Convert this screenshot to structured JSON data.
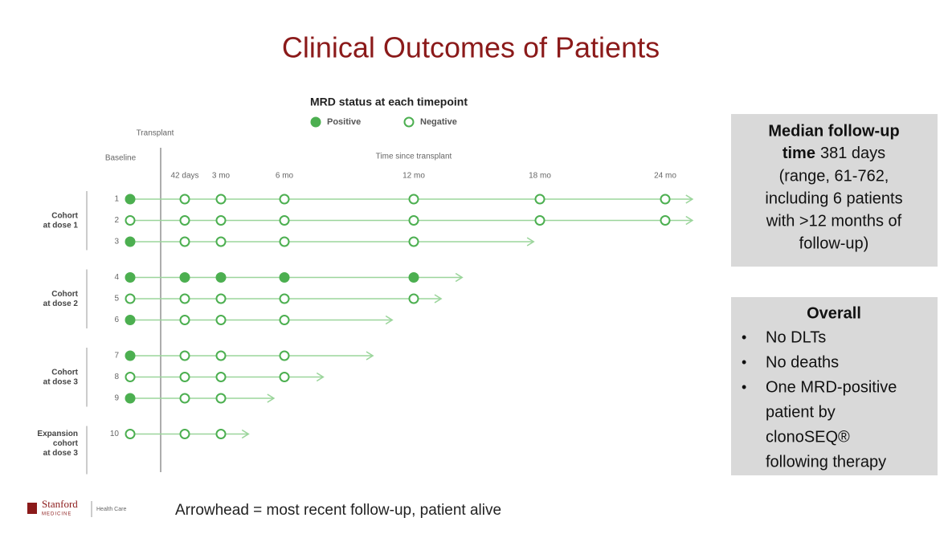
{
  "slide": {
    "title": "Clinical Outcomes of Patients",
    "box1": {
      "heading": [
        "Median follow-up",
        "time"
      ],
      "body": [
        "381 days",
        "(range, 61-762,",
        "including 6 patients",
        "with >12 months of",
        "follow-up)"
      ]
    },
    "box2": {
      "title": "Overall",
      "bullets": [
        {
          "lines": [
            "No DLTs"
          ]
        },
        {
          "lines": [
            "No deaths"
          ]
        },
        {
          "lines": [
            "One MRD-positive",
            "patient by",
            "clonoSEQ®",
            "following therapy"
          ]
        }
      ]
    },
    "logo": [
      "Stanford",
      "MEDICINE",
      "Health Care"
    ],
    "footnote": "Arrowhead = most recent follow-up, patient alive"
  },
  "chart_data": {
    "type": "swimmer",
    "title": "MRD status at each timepoint",
    "legend": [
      {
        "name": "Positive",
        "status": "positive"
      },
      {
        "name": "Negative",
        "status": "negative"
      }
    ],
    "color": "#4caf50",
    "line_color": "#9bd59b",
    "reference_label": "Transplant",
    "xlabel": "Time since transplant",
    "xticks": [
      {
        "value": 0,
        "label": "Baseline"
      },
      {
        "value": 1.4,
        "label": "42 days"
      },
      {
        "value": 3,
        "label": "3 mo"
      },
      {
        "value": 6,
        "label": "6 mo"
      },
      {
        "value": 12,
        "label": "12 mo"
      },
      {
        "value": 18,
        "label": "18 mo"
      },
      {
        "value": 24,
        "label": "24 mo"
      }
    ],
    "groups": [
      {
        "label": [
          "Cohort",
          "at dose 1"
        ],
        "patients": [
          {
            "id": "1",
            "status": [
              "positive",
              "negative",
              "negative",
              "negative",
              "negative",
              "negative",
              "negative"
            ],
            "followup": 25.3
          },
          {
            "id": "2",
            "status": [
              "negative",
              "negative",
              "negative",
              "negative",
              "negative",
              "negative",
              "negative"
            ],
            "followup": 25.3
          },
          {
            "id": "3",
            "status": [
              "positive",
              "negative",
              "negative",
              "negative",
              "negative",
              null,
              null
            ],
            "followup": 17.7
          }
        ]
      },
      {
        "label": [
          "Cohort",
          "at dose 2"
        ],
        "patients": [
          {
            "id": "4",
            "status": [
              "positive",
              "positive",
              "positive",
              "positive",
              "positive",
              null,
              null
            ],
            "followup": 14.3
          },
          {
            "id": "5",
            "status": [
              "negative",
              "negative",
              "negative",
              "negative",
              "negative",
              null,
              null
            ],
            "followup": 13.3
          },
          {
            "id": "6",
            "status": [
              "positive",
              "negative",
              "negative",
              "negative",
              null,
              null,
              null
            ],
            "followup": 11.0
          }
        ]
      },
      {
        "label": [
          "Cohort",
          "at dose 3"
        ],
        "patients": [
          {
            "id": "7",
            "status": [
              "positive",
              "negative",
              "negative",
              "negative",
              null,
              null,
              null
            ],
            "followup": 10.1
          },
          {
            "id": "8",
            "status": [
              "negative",
              "negative",
              "negative",
              "negative",
              null,
              null,
              null
            ],
            "followup": 7.8
          },
          {
            "id": "9",
            "status": [
              "positive",
              "negative",
              "negative",
              null,
              null,
              null,
              null
            ],
            "followup": 5.5
          }
        ]
      },
      {
        "label": [
          "Expansion",
          "cohort",
          "at dose 3"
        ],
        "patients": [
          {
            "id": "10",
            "status": [
              "negative",
              "negative",
              "negative",
              null,
              null,
              null,
              null
            ],
            "followup": 4.3
          }
        ]
      }
    ]
  }
}
